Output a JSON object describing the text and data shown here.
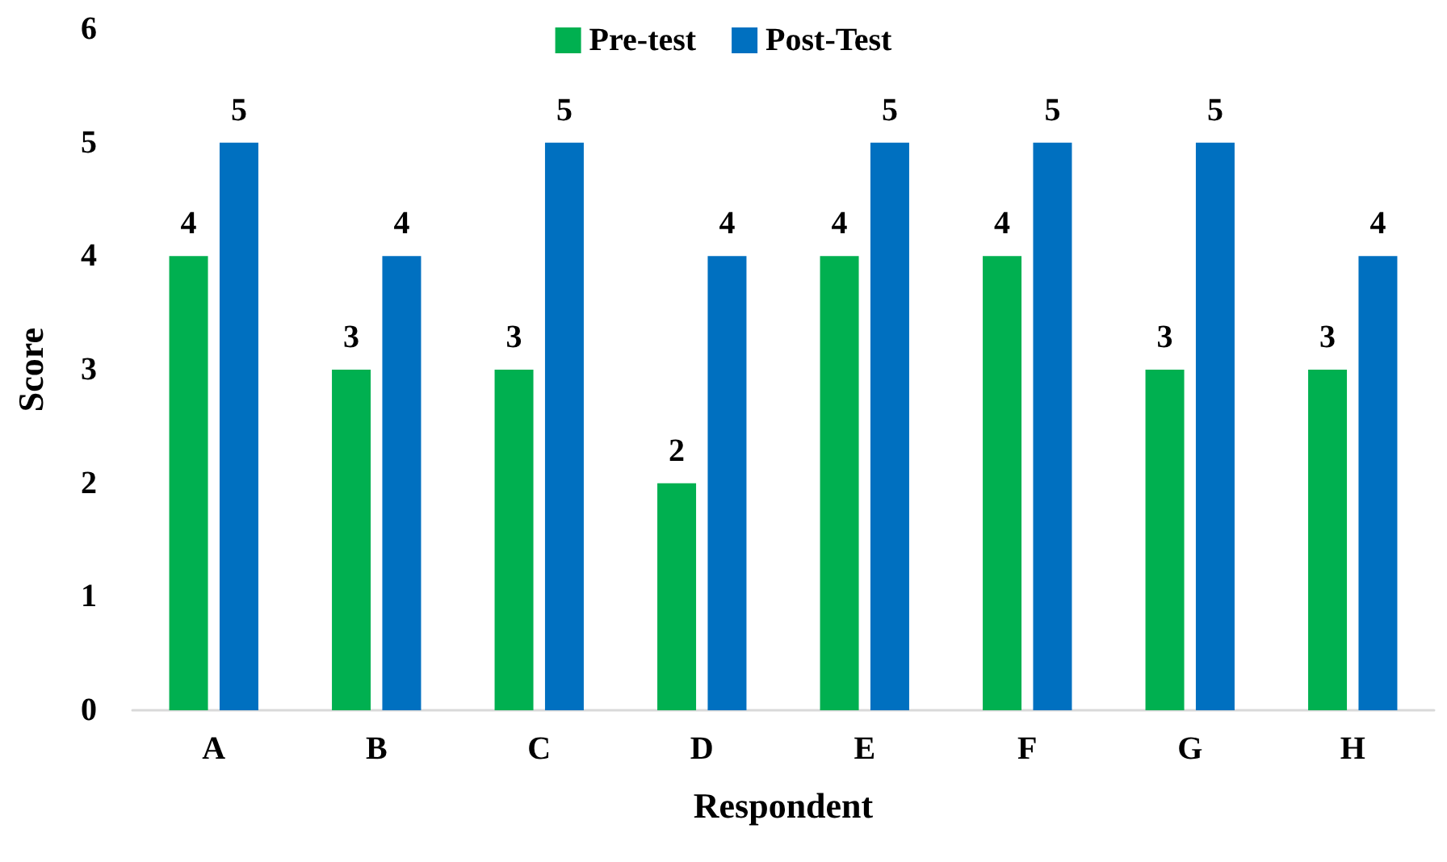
{
  "chart_data": {
    "type": "bar",
    "xlabel": "Respondent",
    "ylabel": "Score",
    "categories": [
      "A",
      "B",
      "C",
      "D",
      "E",
      "F",
      "G",
      "H"
    ],
    "series": [
      {
        "name": "Pre-test",
        "color": "#00b050",
        "values": [
          4,
          3,
          3,
          2,
          4,
          4,
          3,
          3
        ]
      },
      {
        "name": "Post-Test",
        "color": "#0070c0",
        "values": [
          5,
          4,
          5,
          4,
          5,
          5,
          5,
          4
        ]
      }
    ],
    "ylim": [
      0,
      6
    ],
    "yticks": [
      0,
      1,
      2,
      3,
      4,
      5,
      6
    ],
    "grid": false,
    "legend": "top",
    "data_labels": true
  }
}
